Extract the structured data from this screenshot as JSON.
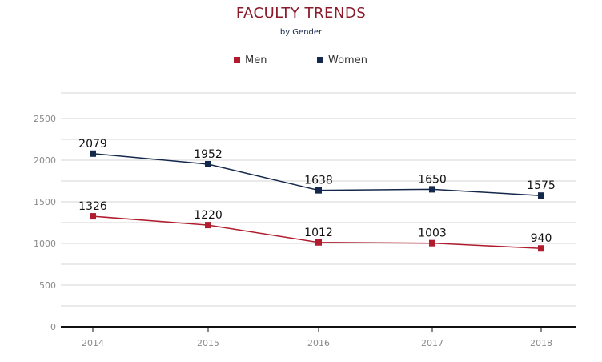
{
  "colors": {
    "title": "#8b1a2b",
    "subtitle": "#1a2b4c",
    "men": "#b01c2e",
    "women": "#14284b",
    "grid": "#d4d4d4",
    "axis": "#111111"
  },
  "chart_data": {
    "type": "line",
    "title": "FACULTY TRENDS",
    "subtitle": "by Gender",
    "categories": [
      "2014",
      "2015",
      "2016",
      "2017",
      "2018"
    ],
    "series": [
      {
        "name": "Men",
        "values": [
          1326,
          1220,
          1012,
          1003,
          940
        ],
        "color": "#b01c2e"
      },
      {
        "name": "Women",
        "values": [
          2079,
          1952,
          1638,
          1650,
          1575
        ],
        "color": "#14284b"
      }
    ],
    "ylim": [
      0,
      2500
    ],
    "yticks": [
      0,
      500,
      1000,
      1500,
      2000,
      2500
    ],
    "grid": true,
    "legend": "top-center",
    "marker": "square"
  }
}
